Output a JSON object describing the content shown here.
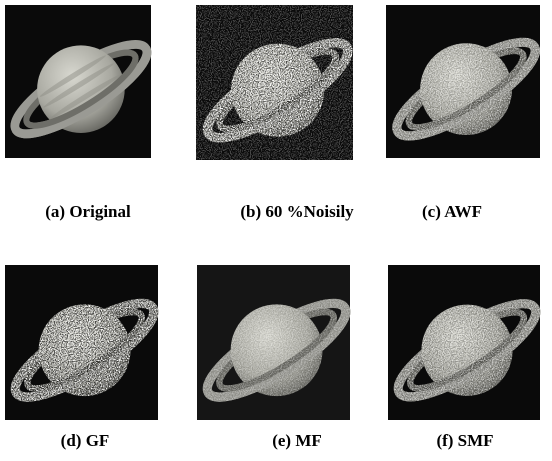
{
  "panels": [
    {
      "caption": "(a) Original"
    },
    {
      "caption": "(b) 60 %Noisily"
    },
    {
      "caption": "(c) AWF"
    },
    {
      "caption": "(d) GF"
    },
    {
      "caption": "(e) MF"
    },
    {
      "caption": "(f) SMF"
    }
  ]
}
